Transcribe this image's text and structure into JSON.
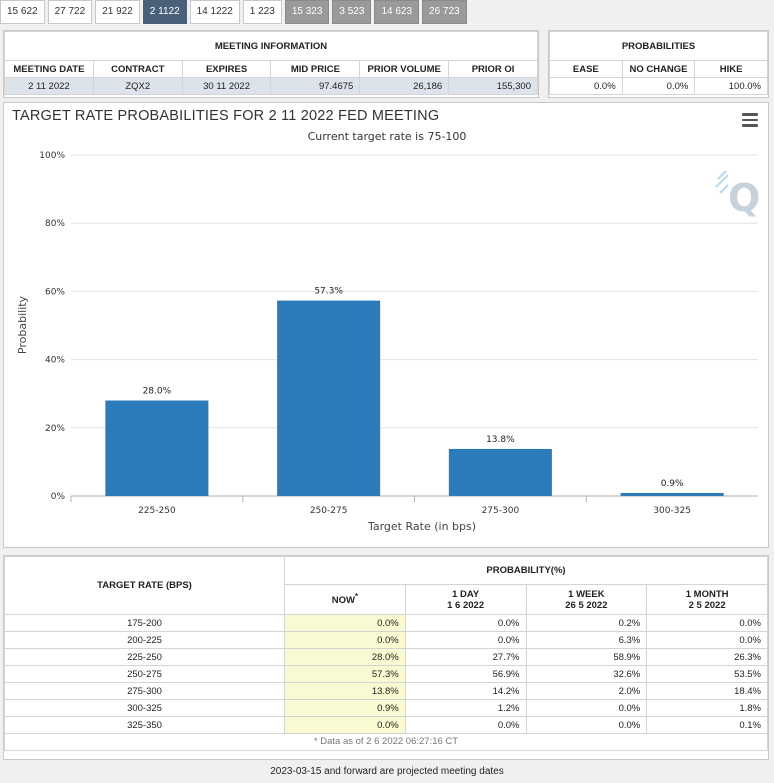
{
  "tabs": [
    {
      "label": "15 622",
      "state": "normal"
    },
    {
      "label": "27 722",
      "state": "normal"
    },
    {
      "label": "21 922",
      "state": "normal"
    },
    {
      "label": "2 1122",
      "state": "active"
    },
    {
      "label": "14 1222",
      "state": "normal"
    },
    {
      "label": "1 223",
      "state": "normal"
    },
    {
      "label": "15 323",
      "state": "past"
    },
    {
      "label": "3 523",
      "state": "past"
    },
    {
      "label": "14 623",
      "state": "past"
    },
    {
      "label": "26 723",
      "state": "past"
    }
  ],
  "meeting_info": {
    "caption": "MEETING INFORMATION",
    "headers": [
      "MEETING DATE",
      "CONTRACT",
      "EXPIRES",
      "MID PRICE",
      "PRIOR VOLUME",
      "PRIOR OI"
    ],
    "values": [
      "2 11 2022",
      "ZQX2",
      "30 11 2022",
      "97.4675",
      "26,186",
      "155,300"
    ]
  },
  "probabilities": {
    "caption": "PROBABILITIES",
    "headers": [
      "EASE",
      "NO CHANGE",
      "HIKE"
    ],
    "values": [
      "0.0%",
      "0.0%",
      "100.0%"
    ]
  },
  "chart": {
    "title": "TARGET RATE PROBABILITIES FOR 2 11 2022 FED MEETING",
    "subtitle": "Current target rate is 75-100"
  },
  "chart_data": {
    "type": "bar",
    "title": "TARGET RATE PROBABILITIES FOR 2 11 2022 FED MEETING",
    "subtitle": "Current target rate is 75-100",
    "categories": [
      "225-250",
      "250-275",
      "275-300",
      "300-325"
    ],
    "values": [
      28.0,
      57.3,
      13.8,
      0.9
    ],
    "labels": [
      "28.0%",
      "57.3%",
      "13.8%",
      "0.9%"
    ],
    "xlabel": "Target Rate (in bps)",
    "ylabel": "Probability",
    "ylim": [
      0,
      100
    ],
    "yticks": [
      0,
      20,
      40,
      60,
      80,
      100
    ],
    "ytick_labels": [
      "0%",
      "20%",
      "40%",
      "60%",
      "80%",
      "100%"
    ],
    "grid": true,
    "bar_color": "#2b7bba"
  },
  "prob_table": {
    "rate_header": "TARGET RATE (BPS)",
    "prob_header": "PROBABILITY(%)",
    "columns": [
      {
        "line1": "NOW",
        "line2": ""
      },
      {
        "line1": "1 DAY",
        "line2": "1 6 2022"
      },
      {
        "line1": "1 WEEK",
        "line2": "26 5 2022"
      },
      {
        "line1": "1 MONTH",
        "line2": "2 5 2022"
      }
    ],
    "now_marker": "*",
    "rows": [
      {
        "rate": "175-200",
        "values": [
          "0.0%",
          "0.0%",
          "0.2%",
          "0.0%"
        ]
      },
      {
        "rate": "200-225",
        "values": [
          "0.0%",
          "0.0%",
          "6.3%",
          "0.0%"
        ]
      },
      {
        "rate": "225-250",
        "values": [
          "28.0%",
          "27.7%",
          "58.9%",
          "26.3%"
        ]
      },
      {
        "rate": "250-275",
        "values": [
          "57.3%",
          "56.9%",
          "32.6%",
          "53.5%"
        ]
      },
      {
        "rate": "275-300",
        "values": [
          "13.8%",
          "14.2%",
          "2.0%",
          "18.4%"
        ]
      },
      {
        "rate": "300-325",
        "values": [
          "0.9%",
          "1.2%",
          "0.0%",
          "1.8%"
        ]
      },
      {
        "rate": "325-350",
        "values": [
          "0.0%",
          "0.0%",
          "0.0%",
          "0.1%"
        ]
      }
    ],
    "footnote": "* Data as of 2 6 2022 06:27:16 CT"
  },
  "projected_note": "2023-03-15 and forward are projected meeting dates"
}
